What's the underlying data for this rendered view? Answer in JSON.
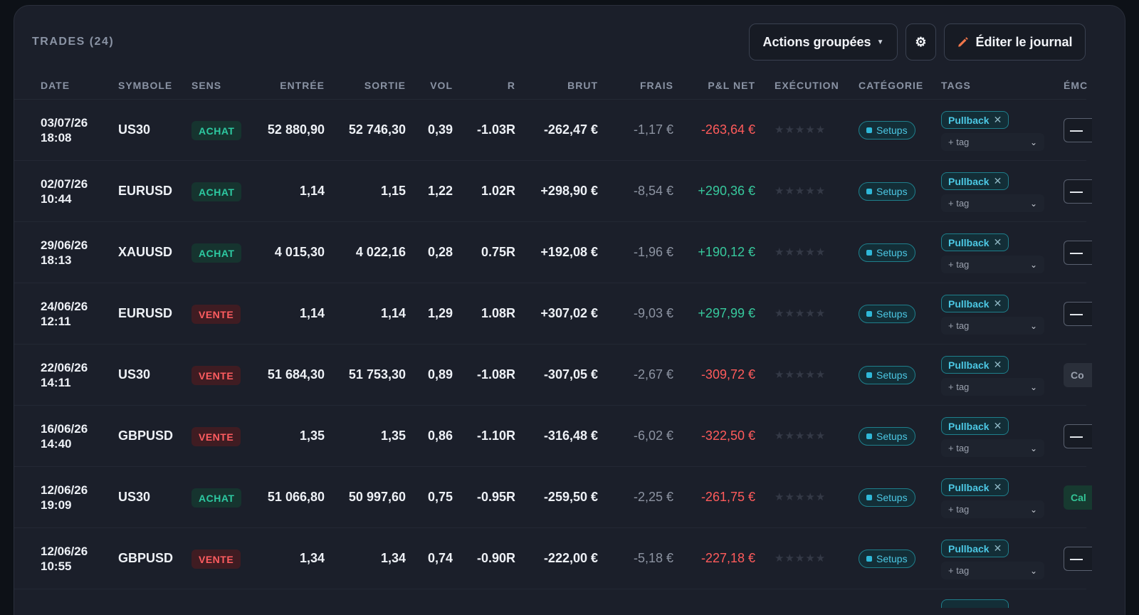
{
  "header": {
    "title": "TRADES (24)",
    "bulk_actions_label": "Actions groupées",
    "settings_icon": "gear-icon",
    "edit_journal_label": "Éditer le journal",
    "edit_icon": "pencil-icon",
    "accent_color": "#f0764a"
  },
  "columns": {
    "date": "DATE",
    "symbol": "SYMBOLE",
    "side": "SENS",
    "entry": "ENTRÉE",
    "exit": "SORTIE",
    "volume": "VOL",
    "r": "R",
    "gross": "BRUT",
    "fees": "FRAIS",
    "net": "P&L NET",
    "execution": "EXÉCUTION",
    "category": "CATÉGORIE",
    "tags": "TAGS",
    "emotion": "ÉMC"
  },
  "rows": [
    {
      "date": "03/07/26",
      "time": "18:08",
      "symbol": "US30",
      "side": "ACHAT",
      "side_type": "achat",
      "entry": "52 880,90",
      "exit": "52 746,30",
      "volume": "0,39",
      "r": "-1.03R",
      "gross": "-262,47 €",
      "fees": "-1,17 €",
      "net": "-263,64 €",
      "net_sign": "neg",
      "stars": "★★★★★",
      "category": "Setups",
      "tag": "Pullback",
      "add_tag": "+ tag",
      "emotion": "—",
      "emotion_kind": "dash"
    },
    {
      "date": "02/07/26",
      "time": "10:44",
      "symbol": "EURUSD",
      "side": "ACHAT",
      "side_type": "achat",
      "entry": "1,14",
      "exit": "1,15",
      "volume": "1,22",
      "r": "1.02R",
      "gross": "+298,90 €",
      "fees": "-8,54 €",
      "net": "+290,36 €",
      "net_sign": "pos",
      "stars": "★★★★★",
      "category": "Setups",
      "tag": "Pullback",
      "add_tag": "+ tag",
      "emotion": "—",
      "emotion_kind": "dash"
    },
    {
      "date": "29/06/26",
      "time": "18:13",
      "symbol": "XAUUSD",
      "side": "ACHAT",
      "side_type": "achat",
      "entry": "4 015,30",
      "exit": "4 022,16",
      "volume": "0,28",
      "r": "0.75R",
      "gross": "+192,08 €",
      "fees": "-1,96 €",
      "net": "+190,12 €",
      "net_sign": "pos",
      "stars": "★★★★★",
      "category": "Setups",
      "tag": "Pullback",
      "add_tag": "+ tag",
      "emotion": "—",
      "emotion_kind": "dash"
    },
    {
      "date": "24/06/26",
      "time": "12:11",
      "symbol": "EURUSD",
      "side": "VENTE",
      "side_type": "vente",
      "entry": "1,14",
      "exit": "1,14",
      "volume": "1,29",
      "r": "1.08R",
      "gross": "+307,02 €",
      "fees": "-9,03 €",
      "net": "+297,99 €",
      "net_sign": "pos",
      "stars": "★★★★★",
      "category": "Setups",
      "tag": "Pullback",
      "add_tag": "+ tag",
      "emotion": "—",
      "emotion_kind": "dash"
    },
    {
      "date": "22/06/26",
      "time": "14:11",
      "symbol": "US30",
      "side": "VENTE",
      "side_type": "vente",
      "entry": "51 684,30",
      "exit": "51 753,30",
      "volume": "0,89",
      "r": "-1.08R",
      "gross": "-307,05 €",
      "fees": "-2,67 €",
      "net": "-309,72 €",
      "net_sign": "neg",
      "stars": "★★★★★",
      "category": "Setups",
      "tag": "Pullback",
      "add_tag": "+ tag",
      "emotion": "Co",
      "emotion_kind": "gray"
    },
    {
      "date": "16/06/26",
      "time": "14:40",
      "symbol": "GBPUSD",
      "side": "VENTE",
      "side_type": "vente",
      "entry": "1,35",
      "exit": "1,35",
      "volume": "0,86",
      "r": "-1.10R",
      "gross": "-316,48 €",
      "fees": "-6,02 €",
      "net": "-322,50 €",
      "net_sign": "neg",
      "stars": "★★★★★",
      "category": "Setups",
      "tag": "Pullback",
      "add_tag": "+ tag",
      "emotion": "—",
      "emotion_kind": "dash"
    },
    {
      "date": "12/06/26",
      "time": "19:09",
      "symbol": "US30",
      "side": "ACHAT",
      "side_type": "achat",
      "entry": "51 066,80",
      "exit": "50 997,60",
      "volume": "0,75",
      "r": "-0.95R",
      "gross": "-259,50 €",
      "fees": "-2,25 €",
      "net": "-261,75 €",
      "net_sign": "neg",
      "stars": "★★★★★",
      "category": "Setups",
      "tag": "Pullback",
      "add_tag": "+ tag",
      "emotion": "Cal",
      "emotion_kind": "green"
    },
    {
      "date": "12/06/26",
      "time": "10:55",
      "symbol": "GBPUSD",
      "side": "VENTE",
      "side_type": "vente",
      "entry": "1,34",
      "exit": "1,34",
      "volume": "0,74",
      "r": "-0.90R",
      "gross": "-222,00 €",
      "fees": "-5,18 €",
      "net": "-227,18 €",
      "net_sign": "neg",
      "stars": "★★★★★",
      "category": "Setups",
      "tag": "Pullback",
      "add_tag": "+ tag",
      "emotion": "—",
      "emotion_kind": "dash"
    }
  ]
}
